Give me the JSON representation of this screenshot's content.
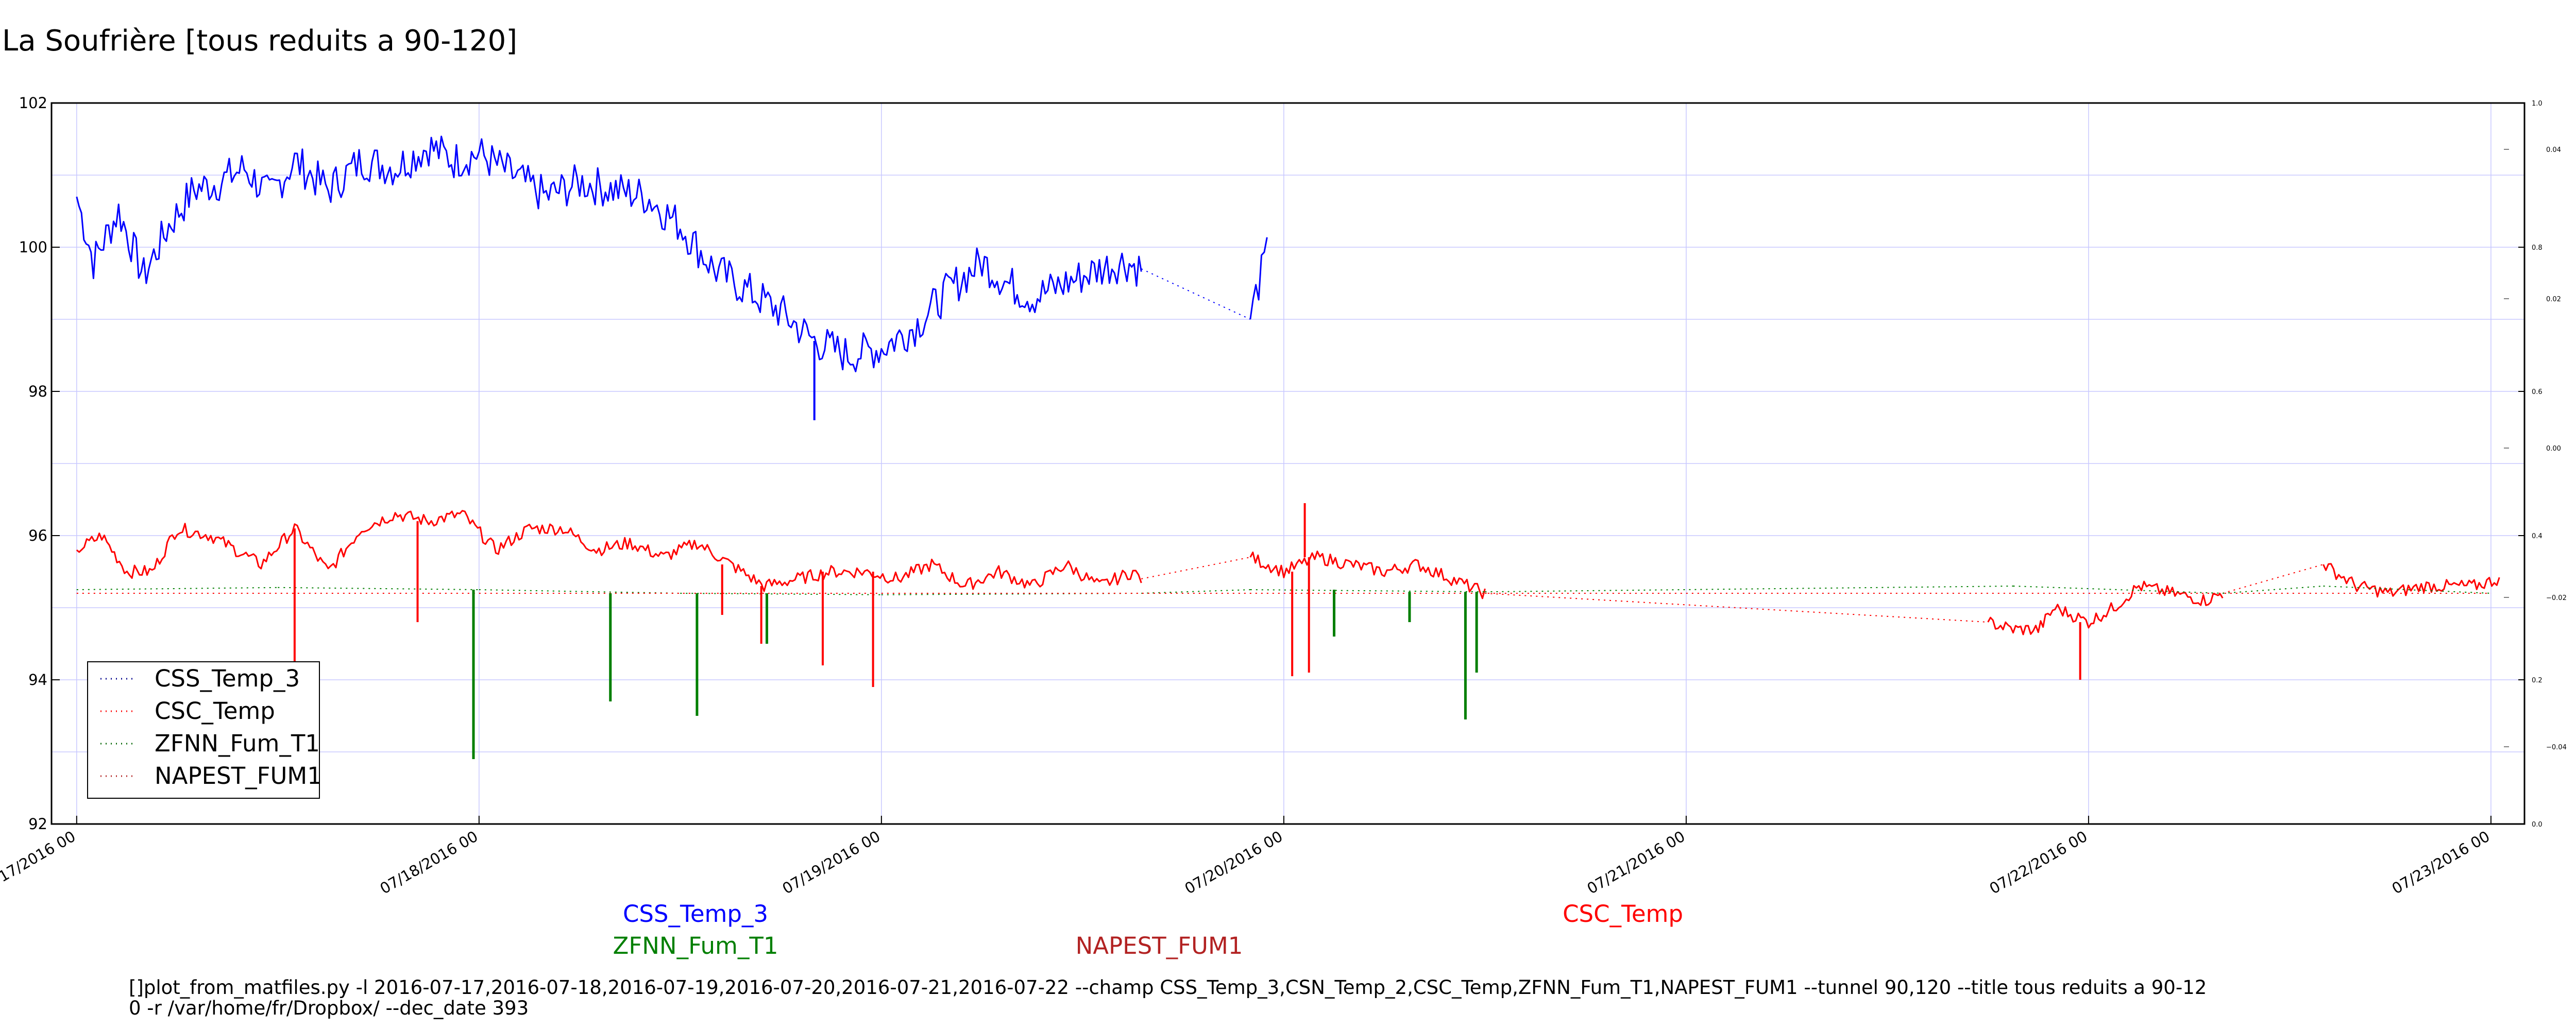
{
  "chart_data": {
    "type": "line",
    "title": "La Soufrière [tous reduits a 90-120]",
    "y_ticks": [
      "92",
      "94",
      "96",
      "98",
      "100",
      "102"
    ],
    "ylim": [
      92,
      102
    ],
    "x_ticks": [
      "07/17/2016 00",
      "07/18/2016 00",
      "07/19/2016 00",
      "07/20/2016 00",
      "07/21/2016 00",
      "07/22/2016 00",
      "07/23/2016 00"
    ],
    "xlim": [
      "2016-07-16 22:30",
      "2016-07-23 02:00"
    ],
    "right_outer_ticks": [
      "0.0",
      "0.2",
      "0.4",
      "0.6",
      "0.8",
      "1.0"
    ],
    "right_inner_ticks": [
      "−0.04",
      "−0.02",
      "0.00",
      "0.02",
      "0.04"
    ],
    "grid": true,
    "legend_position": "lower-left",
    "legend": [
      "CSS_Temp_3",
      "CSC_Temp",
      "ZFNN_Fum_T1",
      "NAPEST_FUM1"
    ],
    "series": [
      {
        "name": "CSS_Temp_3",
        "color": "#0000ff",
        "points": [
          [
            "2016-07-17 00:00",
            100.7
          ],
          [
            "2016-07-17 01:00",
            99.8
          ],
          [
            "2016-07-17 02:30",
            100.5
          ],
          [
            "2016-07-17 04:00",
            99.6
          ],
          [
            "2016-07-17 05:30",
            100.3
          ],
          [
            "2016-07-17 07:00",
            100.8
          ],
          [
            "2016-07-17 08:30",
            100.9
          ],
          [
            "2016-07-17 10:00",
            101.1
          ],
          [
            "2016-07-17 11:30",
            100.7
          ],
          [
            "2016-07-17 13:00",
            101.2
          ],
          [
            "2016-07-17 15:00",
            100.8
          ],
          [
            "2016-07-17 17:00",
            101.2
          ],
          [
            "2016-07-17 19:00",
            101.1
          ],
          [
            "2016-07-17 21:00",
            101.4
          ],
          [
            "2016-07-17 22:30",
            101.2
          ],
          [
            "2016-07-18 00:00",
            101.3
          ],
          [
            "2016-07-18 02:00",
            101.0
          ],
          [
            "2016-07-18 04:00",
            100.7
          ],
          [
            "2016-07-18 06:00",
            100.9
          ],
          [
            "2016-07-18 08:00",
            100.8
          ],
          [
            "2016-07-18 10:00",
            100.7
          ],
          [
            "2016-07-18 12:00",
            100.3
          ],
          [
            "2016-07-18 14:00",
            99.7
          ],
          [
            "2016-07-18 16:00",
            99.4
          ],
          [
            "2016-07-18 18:00",
            99.1
          ],
          [
            "2016-07-18 20:00",
            98.7
          ],
          [
            "2016-07-18 22:00",
            98.5
          ],
          [
            "2016-07-19 00:00",
            98.6
          ],
          [
            "2016-07-19 02:00",
            98.9
          ],
          [
            "2016-07-19 04:00",
            99.4
          ],
          [
            "2016-07-19 06:00",
            99.8
          ],
          [
            "2016-07-19 07:30",
            99.5
          ],
          [
            "2016-07-19 09:00",
            99.3
          ],
          [
            "2016-07-19 11:00",
            99.5
          ],
          [
            "2016-07-19 13:00",
            99.7
          ],
          [
            "2016-07-19 14:30",
            99.8
          ],
          [
            "2016-07-19 15:30",
            99.7
          ],
          [
            "2016-07-19 22:00",
            99.0
          ],
          [
            "2016-07-19 22:30",
            99.5
          ],
          [
            "2016-07-19 23:00",
            99.9
          ]
        ]
      },
      {
        "name": "CSC_Temp",
        "color": "#ff0000",
        "points": [
          [
            "2016-07-17 00:00",
            95.8
          ],
          [
            "2016-07-17 01:30",
            96.0
          ],
          [
            "2016-07-17 03:00",
            95.5
          ],
          [
            "2016-07-17 04:30",
            95.5
          ],
          [
            "2016-07-17 06:00",
            96.1
          ],
          [
            "2016-07-17 08:00",
            96.0
          ],
          [
            "2016-07-17 09:30",
            95.8
          ],
          [
            "2016-07-17 11:00",
            95.6
          ],
          [
            "2016-07-17 13:00",
            96.1
          ],
          [
            "2016-07-17 15:00",
            95.5
          ],
          [
            "2016-07-17 17:00",
            96.1
          ],
          [
            "2016-07-17 19:00",
            96.3
          ],
          [
            "2016-07-17 21:00",
            96.2
          ],
          [
            "2016-07-17 23:00",
            96.3
          ],
          [
            "2016-07-18 01:00",
            95.8
          ],
          [
            "2016-07-18 03:00",
            96.1
          ],
          [
            "2016-07-18 05:00",
            96.1
          ],
          [
            "2016-07-18 07:00",
            95.8
          ],
          [
            "2016-07-18 09:00",
            95.9
          ],
          [
            "2016-07-18 11:00",
            95.7
          ],
          [
            "2016-07-18 13:00",
            95.9
          ],
          [
            "2016-07-18 15:00",
            95.6
          ],
          [
            "2016-07-18 17:00",
            95.3
          ],
          [
            "2016-07-18 19:00",
            95.4
          ],
          [
            "2016-07-18 21:00",
            95.5
          ],
          [
            "2016-07-18 23:00",
            95.5
          ],
          [
            "2016-07-19 01:00",
            95.4
          ],
          [
            "2016-07-19 03:00",
            95.6
          ],
          [
            "2016-07-19 05:00",
            95.3
          ],
          [
            "2016-07-19 07:00",
            95.5
          ],
          [
            "2016-07-19 09:00",
            95.3
          ],
          [
            "2016-07-19 11:00",
            95.6
          ],
          [
            "2016-07-19 13:00",
            95.3
          ],
          [
            "2016-07-19 15:00",
            95.5
          ],
          [
            "2016-07-19 15:30",
            95.4
          ],
          [
            "2016-07-19 22:00",
            95.7
          ],
          [
            "2016-07-20 00:00",
            95.5
          ],
          [
            "2016-07-20 02:00",
            95.7
          ],
          [
            "2016-07-20 04:00",
            95.6
          ],
          [
            "2016-07-20 06:00",
            95.5
          ],
          [
            "2016-07-20 08:00",
            95.6
          ],
          [
            "2016-07-20 10:00",
            95.4
          ],
          [
            "2016-07-20 12:00",
            95.2
          ],
          [
            "2016-07-21 18:00",
            94.8
          ],
          [
            "2016-07-21 19:30",
            94.7
          ],
          [
            "2016-07-21 21:00",
            94.7
          ],
          [
            "2016-07-21 22:00",
            95.0
          ],
          [
            "2016-07-22 00:00",
            94.8
          ],
          [
            "2016-07-22 01:30",
            95.0
          ],
          [
            "2016-07-22 03:00",
            95.3
          ],
          [
            "2016-07-22 05:00",
            95.2
          ],
          [
            "2016-07-22 07:00",
            95.1
          ],
          [
            "2016-07-22 08:00",
            95.2
          ],
          [
            "2016-07-22 14:00",
            95.6
          ],
          [
            "2016-07-22 16:00",
            95.3
          ],
          [
            "2016-07-22 18:00",
            95.2
          ],
          [
            "2016-07-22 20:00",
            95.3
          ],
          [
            "2016-07-22 23:00",
            95.3
          ],
          [
            "2016-07-23 00:30",
            95.4
          ]
        ]
      },
      {
        "name": "ZFNN_Fum_T1",
        "color": "#007f00",
        "points": [
          [
            "2016-07-17 00:00",
            95.25
          ],
          [
            "2016-07-17 12:00",
            95.28
          ],
          [
            "2016-07-18 00:00",
            95.25
          ],
          [
            "2016-07-18 12:00",
            95.2
          ],
          [
            "2016-07-19 00:00",
            95.18
          ],
          [
            "2016-07-19 15:30",
            95.2
          ],
          [
            "2016-07-19 22:00",
            95.25
          ],
          [
            "2016-07-20 12:00",
            95.22
          ],
          [
            "2016-07-21 19:30",
            95.3
          ],
          [
            "2016-07-22 08:00",
            95.2
          ],
          [
            "2016-07-22 14:00",
            95.3
          ],
          [
            "2016-07-23 00:00",
            95.2
          ]
        ]
      },
      {
        "name": "NAPEST_FUM1",
        "color": "#ff0000",
        "points": [
          [
            "2016-07-17 00:00",
            95.2
          ],
          [
            "2016-07-23 00:00",
            95.2
          ]
        ]
      }
    ],
    "dips": [
      {
        "series": "CSC_Temp",
        "x": "2016-07-17 13:00",
        "y": 94.2
      },
      {
        "series": "CSC_Temp",
        "x": "2016-07-17 20:20",
        "y": 94.8
      },
      {
        "series": "CSC_Temp",
        "x": "2016-07-18 14:30",
        "y": 94.9
      },
      {
        "series": "CSC_Temp",
        "x": "2016-07-18 16:50",
        "y": 94.5
      },
      {
        "series": "CSC_Temp",
        "x": "2016-07-18 20:30",
        "y": 94.2
      },
      {
        "series": "CSC_Temp",
        "x": "2016-07-18 23:30",
        "y": 93.9
      },
      {
        "series": "CSC_Temp",
        "x": "2016-07-20 00:30",
        "y": 94.05
      },
      {
        "series": "CSC_Temp",
        "x": "2016-07-20 01:30",
        "y": 94.1
      },
      {
        "series": "CSC_Temp",
        "x": "2016-07-21 23:30",
        "y": 94.0
      },
      {
        "series": "ZFNN_Fum_T1",
        "x": "2016-07-17 23:40",
        "y": 92.9
      },
      {
        "series": "ZFNN_Fum_T1",
        "x": "2016-07-18 07:50",
        "y": 93.7
      },
      {
        "series": "ZFNN_Fum_T1",
        "x": "2016-07-18 13:00",
        "y": 93.5
      },
      {
        "series": "ZFNN_Fum_T1",
        "x": "2016-07-18 17:10",
        "y": 94.5
      },
      {
        "series": "ZFNN_Fum_T1",
        "x": "2016-07-20 03:00",
        "y": 94.6
      },
      {
        "series": "ZFNN_Fum_T1",
        "x": "2016-07-20 07:30",
        "y": 94.8
      },
      {
        "series": "ZFNN_Fum_T1",
        "x": "2016-07-20 10:50",
        "y": 93.45
      },
      {
        "series": "ZFNN_Fum_T1",
        "x": "2016-07-20 11:30",
        "y": 94.1
      }
    ],
    "spikes": [
      {
        "series": "CSC_Temp",
        "x": "2016-07-20 01:15",
        "y": 96.45
      },
      {
        "series": "CSS_Temp_3",
        "x": "2016-07-18 20:00",
        "y": 97.6
      }
    ]
  },
  "below_labels": [
    {
      "text": "CSS_Temp_3",
      "color": "#0000ff"
    },
    {
      "text": "ZFNN_Fum_T1",
      "color": "#007f00"
    },
    {
      "text": "NAPEST_FUM1",
      "color": "#b22222"
    },
    {
      "text": "CSC_Temp",
      "color": "#ff0000"
    }
  ],
  "command_line": [
    "[]plot_from_matfiles.py -l 2016-07-17,2016-07-18,2016-07-19,2016-07-20,2016-07-21,2016-07-22 --champ CSS_Temp_3,CSN_Temp_2,CSC_Temp,ZFNN_Fum_T1,NAPEST_FUM1 --tunnel 90,120 --title tous reduits a 90-12",
    "0 -r /var/home/fr/Dropbox/ --dec_date 393"
  ]
}
